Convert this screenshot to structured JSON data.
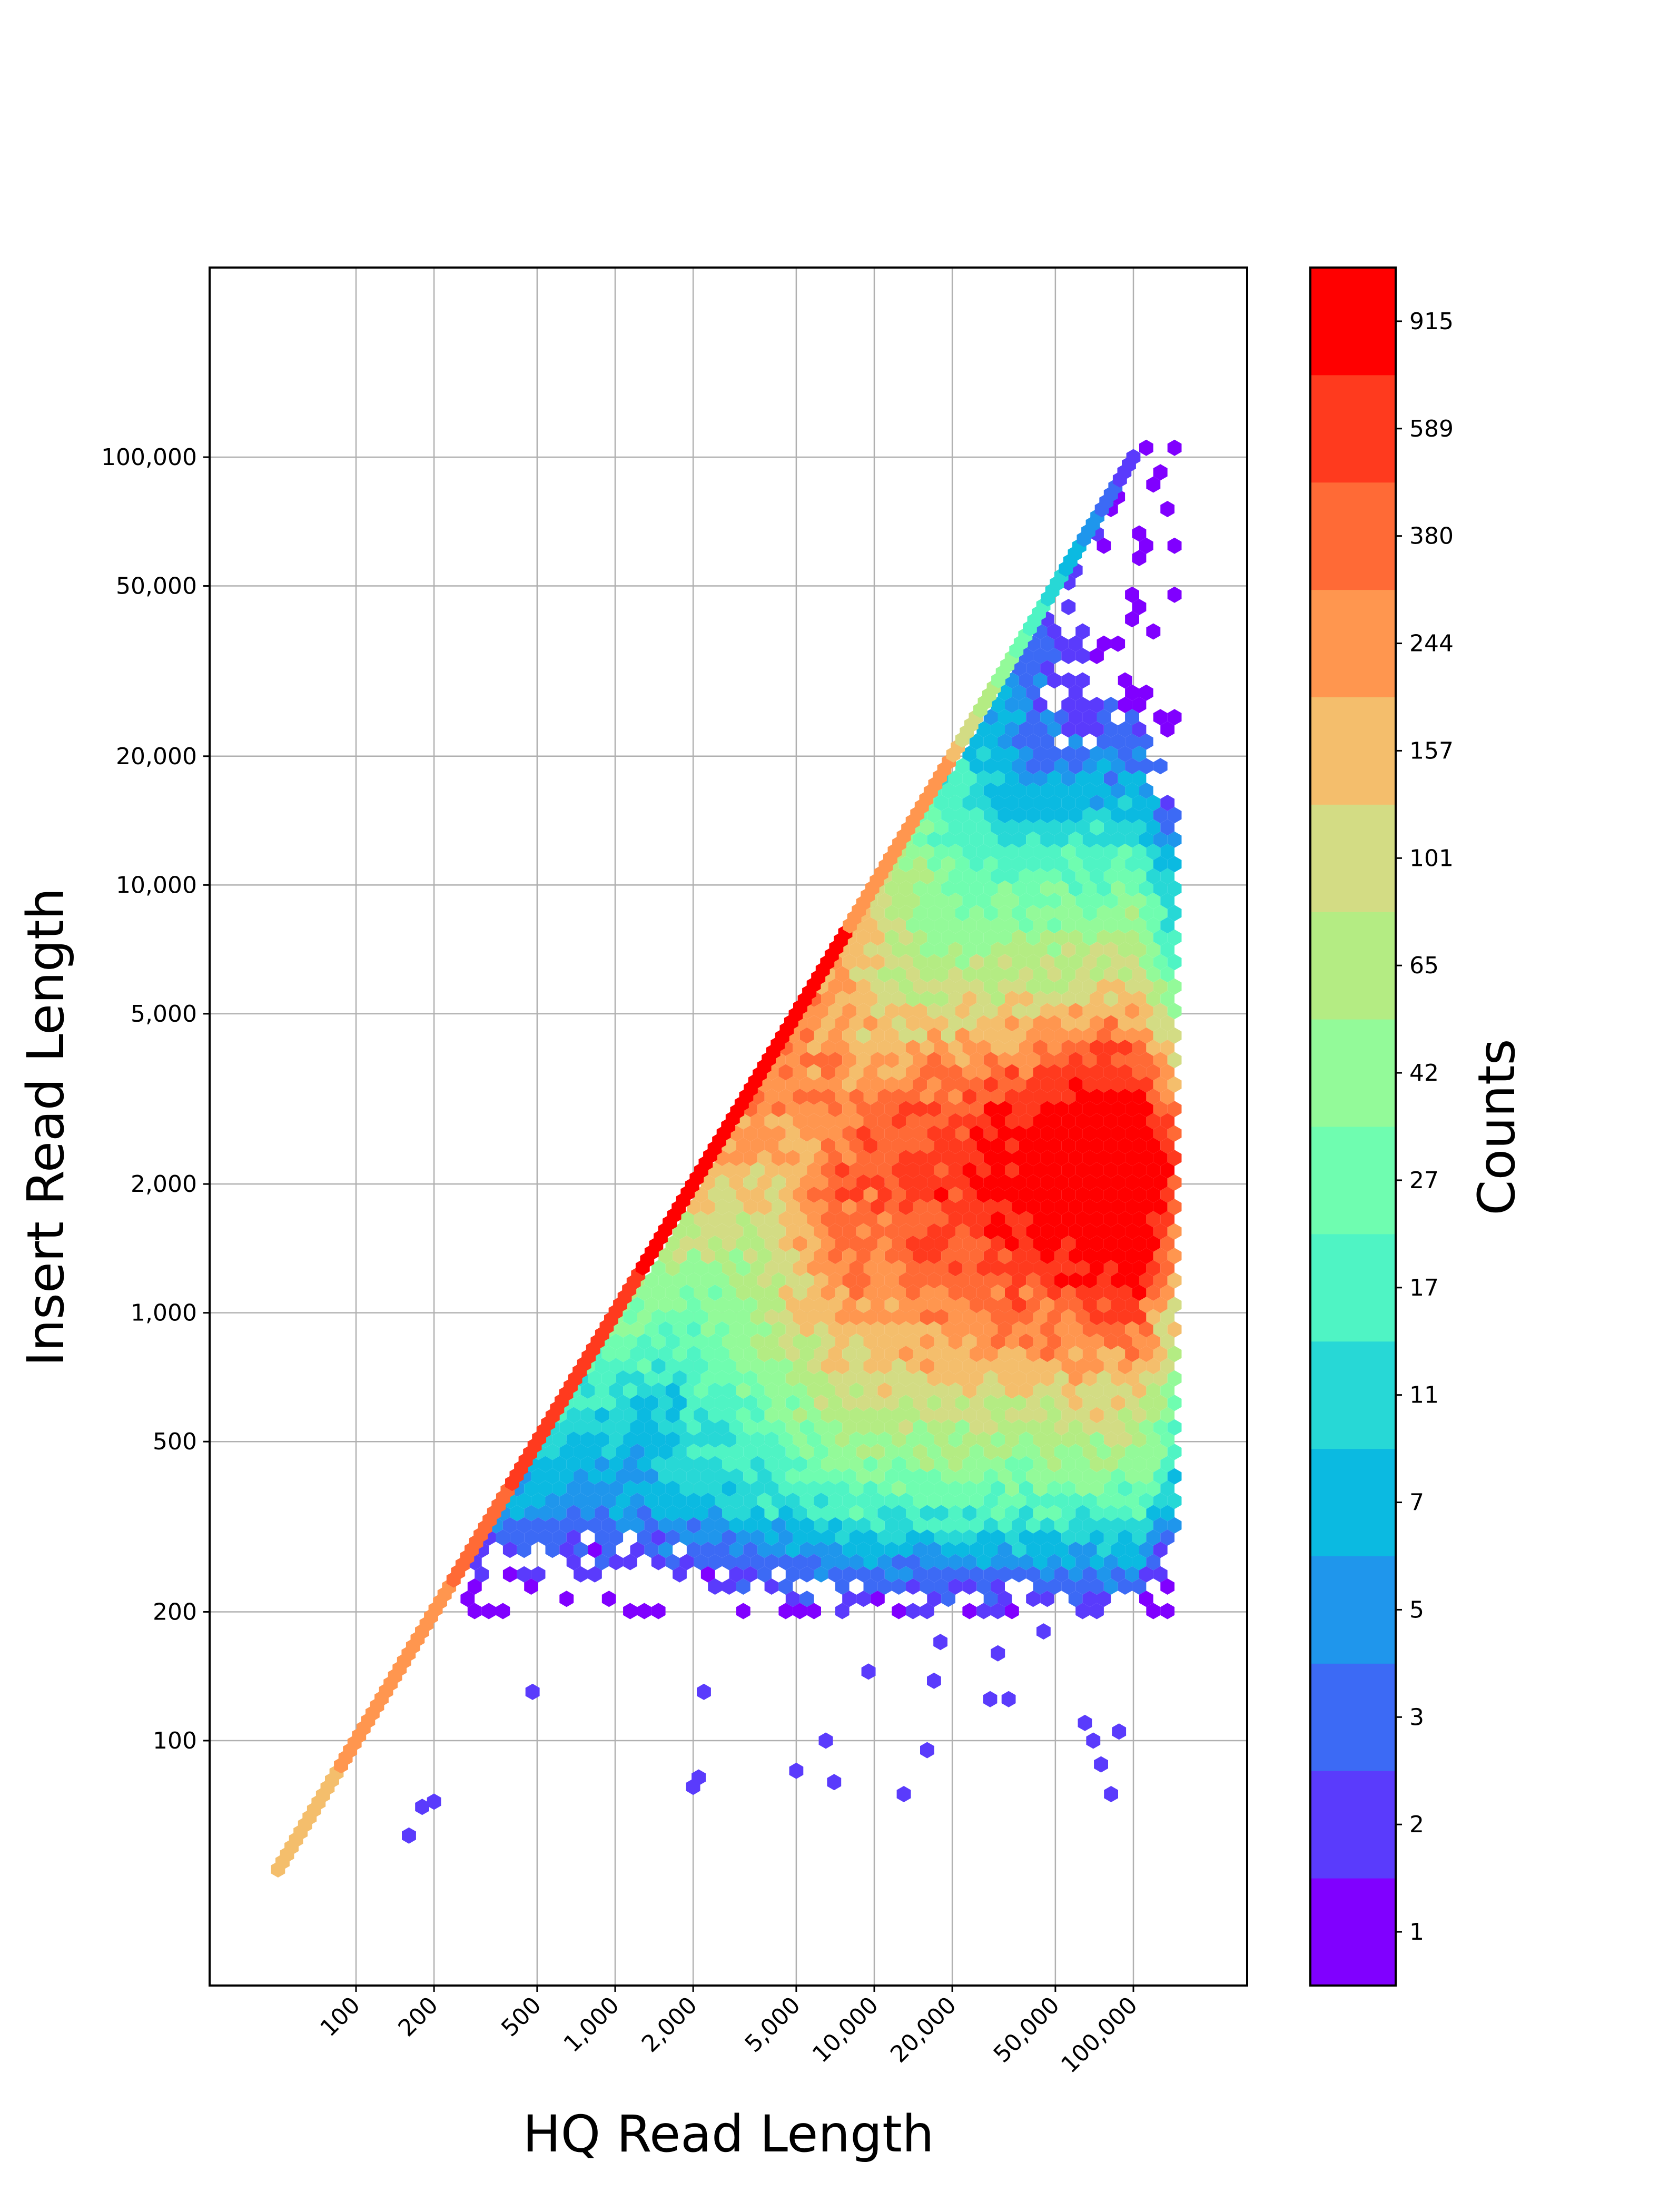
{
  "chart_data": {
    "type": "heatmap",
    "subtype": "hexbin",
    "title": "",
    "xlabel": "HQ Read Length",
    "ylabel": "Insert Read Length",
    "xscale": "log",
    "yscale": "log",
    "xlim": [
      30,
      200000
    ],
    "ylim": [
      30,
      500000
    ],
    "grid": true,
    "x_ticks": [
      100,
      200,
      500,
      1000,
      2000,
      5000,
      10000,
      20000,
      50000,
      100000
    ],
    "x_tick_labels": [
      "100",
      "200",
      "500",
      "1,000",
      "2,000",
      "5,000",
      "10,000",
      "20,000",
      "50,000",
      "100,000"
    ],
    "y_ticks": [
      100,
      200,
      500,
      1000,
      2000,
      5000,
      10000,
      20000,
      50000,
      100000
    ],
    "y_tick_labels": [
      "100",
      "200",
      "500",
      "1,000",
      "2,000",
      "5,000",
      "10,000",
      "20,000",
      "50,000",
      "100,000"
    ],
    "colorbar": {
      "label": "Counts",
      "tick_labels": [
        "1",
        "2",
        "3",
        "5",
        "7",
        "11",
        "17",
        "27",
        "42",
        "65",
        "101",
        "157",
        "244",
        "380",
        "589",
        "915"
      ],
      "colors": [
        "#8000ff",
        "#5a3bfc",
        "#3c6af5",
        "#1f96ec",
        "#0bbae1",
        "#27d8d6",
        "#4ff4c4",
        "#6ffdb0",
        "#93fa99",
        "#b4ec83",
        "#d3dc84",
        "#f4be6c",
        "#ff964f",
        "#ff6a36",
        "#ff3a1e",
        "#ff0000"
      ]
    },
    "diagonal_line": {
      "x_from": 50,
      "x_to": 100000,
      "description_color_low": "#f4be6c",
      "color_high": "#ff0000"
    },
    "density_regions": [
      {
        "x_range": [
          1000,
          100000
        ],
        "y_range": [
          500,
          5000
        ],
        "count_level": "101-244"
      },
      {
        "x_range": [
          3000,
          120000
        ],
        "y_range": [
          1200,
          3500
        ],
        "count_level": "244-589"
      },
      {
        "x_range": [
          15000,
          120000
        ],
        "y_range": [
          1800,
          3200
        ],
        "count_level": "589-915"
      },
      {
        "x_range": [
          300,
          120000
        ],
        "y_range": [
          200,
          500
        ],
        "count_level": "2-17"
      },
      {
        "x_range": [
          20000,
          120000
        ],
        "y_range": [
          5000,
          100000
        ],
        "count_level": "2-42"
      }
    ],
    "outlier_points": [
      [
        160,
        60
      ],
      [
        180,
        70
      ],
      [
        200,
        72
      ],
      [
        480,
        130
      ],
      [
        2000,
        78
      ],
      [
        2100,
        82
      ],
      [
        2200,
        130
      ],
      [
        5000,
        85
      ],
      [
        6500,
        100
      ],
      [
        7000,
        80
      ],
      [
        9500,
        145
      ],
      [
        13000,
        75
      ],
      [
        16000,
        95
      ],
      [
        17000,
        138
      ],
      [
        18000,
        170
      ],
      [
        28000,
        125
      ],
      [
        30000,
        160
      ],
      [
        33000,
        125
      ],
      [
        45000,
        180
      ],
      [
        65000,
        110
      ],
      [
        70000,
        100
      ],
      [
        75000,
        88
      ],
      [
        82000,
        75
      ],
      [
        88000,
        105
      ]
    ]
  }
}
